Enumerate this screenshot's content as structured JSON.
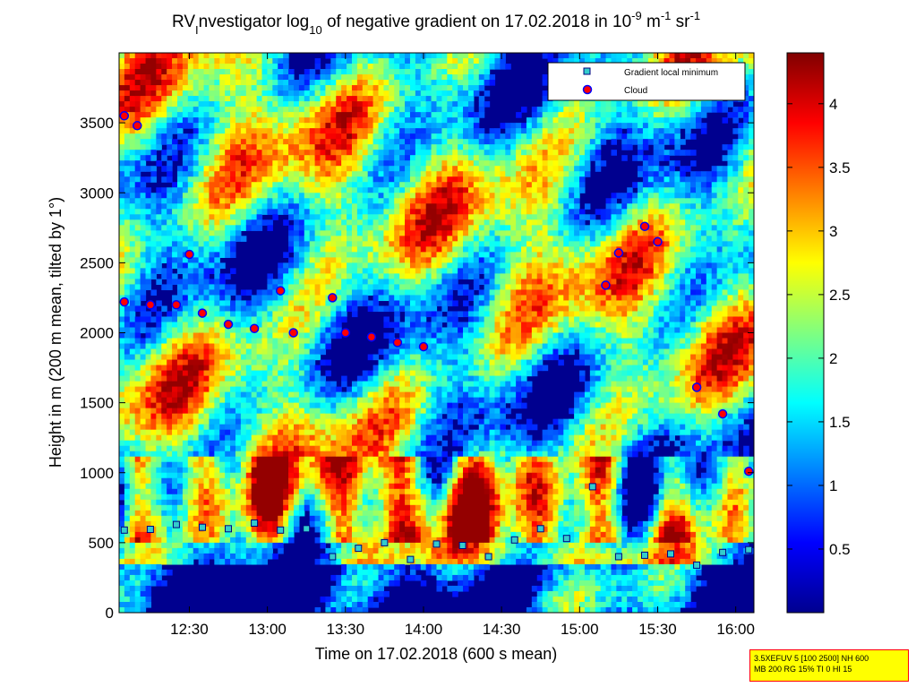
{
  "chart_data": {
    "type": "heatmap",
    "title": {
      "prefix": "RV",
      "sub_i": "I",
      "mid": "nvestigator log",
      "sub_10": "10",
      "after": " of negative gradient on 17.02.2018 in 10",
      "exp1": "-9",
      "unit_m": " m",
      "exp2": "-1",
      "unit_sr": " sr",
      "exp3": "-1"
    },
    "xlabel": "Time on 17.02.2018 (600 s mean)",
    "ylabel": "Height in m (200 m mean, tilted by 1°)",
    "x_ticks": [
      "12:30",
      "13:00",
      "13:30",
      "14:00",
      "14:30",
      "15:00",
      "15:30",
      "16:00"
    ],
    "y_ticks": [
      "0",
      "500",
      "1000",
      "1500",
      "2000",
      "2500",
      "3000",
      "3500"
    ],
    "colorbar_ticks": [
      "0.5",
      "1",
      "1.5",
      "2",
      "2.5",
      "3",
      "3.5",
      "4"
    ],
    "colorbar_range": [
      0,
      4.4
    ],
    "colormap": "jet",
    "x_range": [
      "12:03",
      "16:07"
    ],
    "y_range": [
      0,
      4000
    ],
    "legend": {
      "position": "top-right",
      "entries": [
        {
          "label": "Gradient local minimum",
          "marker": "square",
          "color": "#33cccc",
          "edge": "#000080"
        },
        {
          "label": "Cloud",
          "marker": "circle",
          "color": "#ff0000",
          "edge": "#0000ff"
        }
      ]
    },
    "gradient_local_minimum": [
      {
        "t": "12:05",
        "h": 590
      },
      {
        "t": "12:15",
        "h": 595
      },
      {
        "t": "12:25",
        "h": 630
      },
      {
        "t": "12:35",
        "h": 610
      },
      {
        "t": "12:45",
        "h": 600
      },
      {
        "t": "12:55",
        "h": 640
      },
      {
        "t": "13:05",
        "h": 590
      },
      {
        "t": "13:15",
        "h": 600
      },
      {
        "t": "13:25",
        "h": 400
      },
      {
        "t": "13:35",
        "h": 460
      },
      {
        "t": "13:45",
        "h": 500
      },
      {
        "t": "13:55",
        "h": 380
      },
      {
        "t": "14:05",
        "h": 490
      },
      {
        "t": "14:15",
        "h": 480
      },
      {
        "t": "14:25",
        "h": 400
      },
      {
        "t": "14:35",
        "h": 520
      },
      {
        "t": "14:45",
        "h": 600
      },
      {
        "t": "14:55",
        "h": 530
      },
      {
        "t": "15:05",
        "h": 900
      },
      {
        "t": "15:15",
        "h": 400
      },
      {
        "t": "15:25",
        "h": 410
      },
      {
        "t": "15:35",
        "h": 420
      },
      {
        "t": "15:45",
        "h": 340
      },
      {
        "t": "15:55",
        "h": 430
      },
      {
        "t": "16:05",
        "h": 450
      }
    ],
    "cloud": [
      {
        "t": "12:05",
        "h": 3550
      },
      {
        "t": "12:10",
        "h": 3480
      },
      {
        "t": "12:05",
        "h": 2220
      },
      {
        "t": "12:15",
        "h": 2200
      },
      {
        "t": "12:25",
        "h": 2200
      },
      {
        "t": "12:30",
        "h": 2560
      },
      {
        "t": "12:35",
        "h": 2140
      },
      {
        "t": "12:45",
        "h": 2060
      },
      {
        "t": "12:55",
        "h": 2030
      },
      {
        "t": "13:05",
        "h": 2300
      },
      {
        "t": "13:10",
        "h": 2000
      },
      {
        "t": "13:25",
        "h": 2250
      },
      {
        "t": "13:30",
        "h": 2000
      },
      {
        "t": "13:40",
        "h": 1970
      },
      {
        "t": "13:50",
        "h": 1930
      },
      {
        "t": "14:00",
        "h": 1900
      },
      {
        "t": "15:10",
        "h": 2340
      },
      {
        "t": "15:15",
        "h": 2570
      },
      {
        "t": "15:25",
        "h": 2760
      },
      {
        "t": "15:30",
        "h": 2650
      },
      {
        "t": "15:45",
        "h": 1610
      },
      {
        "t": "15:55",
        "h": 1420
      },
      {
        "t": "16:05",
        "h": 1010
      }
    ]
  },
  "infobox": {
    "line1": "3.5XEFUV 5 [100 2500] NH 600",
    "line2": "MB 200 RG 15% TI 0 HI 15"
  }
}
